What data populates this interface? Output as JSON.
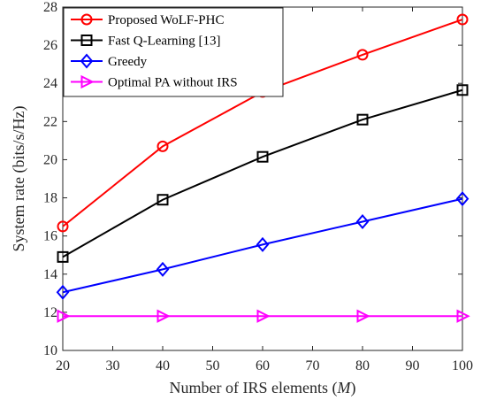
{
  "chart_data": {
    "type": "line",
    "x": [
      20,
      40,
      60,
      80,
      100
    ],
    "xlim": [
      20,
      100
    ],
    "ylim": [
      10,
      28
    ],
    "xticks": [
      20,
      30,
      40,
      50,
      60,
      70,
      80,
      90,
      100
    ],
    "yticks": [
      10,
      12,
      14,
      16,
      18,
      20,
      22,
      24,
      26,
      28
    ],
    "xlabel": "Number of IRS elements (",
    "xlabel_var": "M",
    "xlabel_close": ")",
    "ylabel": "System rate (bits/s/Hz)",
    "grid": false,
    "legend_position": "top-left",
    "series": [
      {
        "name": "Proposed WoLF-PHC",
        "color": "#ff0000",
        "marker": "circle",
        "values": [
          16.5,
          20.7,
          23.55,
          25.5,
          27.35
        ]
      },
      {
        "name": "Fast Q-Learning [13]",
        "color": "#000000",
        "marker": "square",
        "values": [
          14.9,
          17.9,
          20.15,
          22.1,
          23.65
        ]
      },
      {
        "name": "Greedy",
        "color": "#0000ff",
        "marker": "diamond",
        "values": [
          13.05,
          14.25,
          15.55,
          16.75,
          17.95
        ]
      },
      {
        "name": "Optimal PA without IRS",
        "color": "#ff00ff",
        "marker": "triangle-right",
        "values": [
          11.8,
          11.8,
          11.8,
          11.8,
          11.8
        ]
      }
    ]
  }
}
